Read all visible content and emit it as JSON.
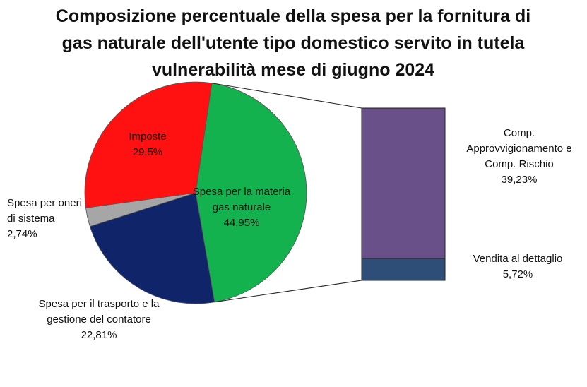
{
  "chart_data": {
    "type": "pie-of-bar",
    "title": "Composizione percentuale della spesa per la fornitura di gas naturale dell'utente tipo domestico servito in tutela vulnerabilità mese di giugno 2024",
    "categories": [
      "Spesa per la materia gas naturale",
      "Spesa per il trasporto e la gestione del contatore",
      "Spesa per oneri di sistema",
      "Imposte"
    ],
    "values": [
      44.95,
      22.81,
      2.74,
      29.5
    ],
    "value_labels": [
      "44,95%",
      "22,81%",
      "2,74%",
      "29,5%"
    ],
    "colors": [
      "#13b24f",
      "#10246a",
      "#a6a6a6",
      "#ff1111"
    ],
    "bar": {
      "categories": [
        "Comp. Approvvigionamento e Comp. Rischio",
        "Vendita al dettaglio"
      ],
      "values": [
        39.23,
        5.72
      ],
      "value_labels": [
        "39,23%",
        "5,72%"
      ],
      "colors": [
        "#6a5088",
        "#2e4e78"
      ]
    }
  }
}
